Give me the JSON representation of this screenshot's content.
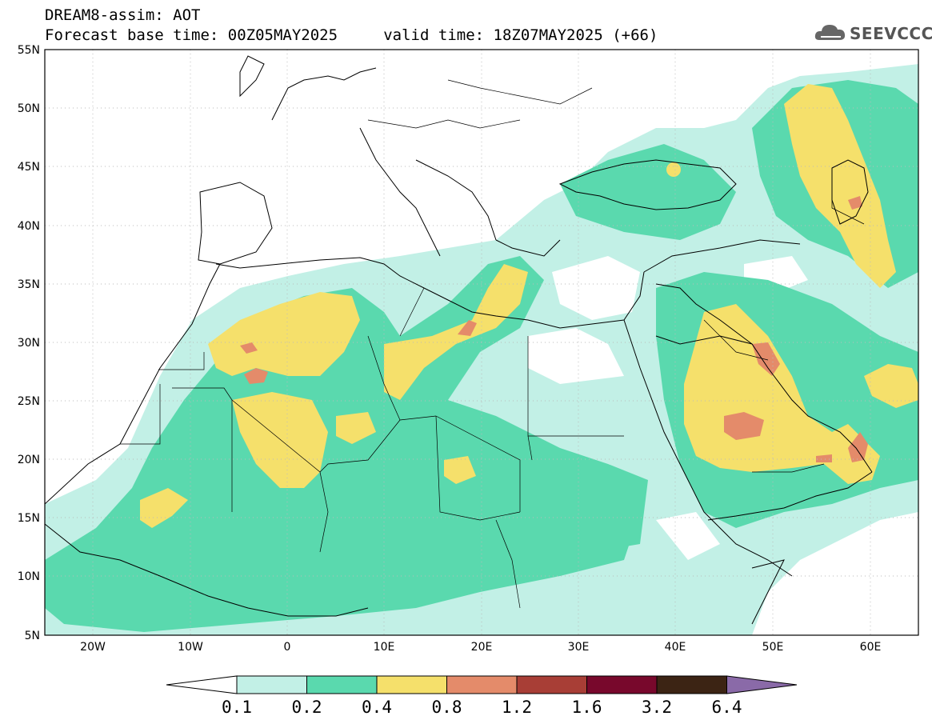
{
  "header": {
    "title": "DREAM8-assim: AOT",
    "subtitle": "Forecast base time: 00Z05MAY2025     valid time: 18Z07MAY2025 (+66)"
  },
  "logo": {
    "text": "SEEVCCC",
    "icon": "cloud-icon"
  },
  "map": {
    "lon_range": [
      -25,
      65
    ],
    "lat_range": [
      5,
      55
    ],
    "grid": true,
    "lat_ticks": [
      "55N",
      "50N",
      "45N",
      "40N",
      "35N",
      "30N",
      "25N",
      "20N",
      "15N",
      "10N",
      "5N"
    ],
    "lon_ticks": [
      "20W",
      "10W",
      "0",
      "10E",
      "20E",
      "30E",
      "40E",
      "50E",
      "60E"
    ]
  },
  "colorbar": {
    "levels": [
      "0.1",
      "0.2",
      "0.4",
      "0.8",
      "1.2",
      "1.6",
      "3.2",
      "6.4"
    ],
    "colors": [
      "#ffffff",
      "#c2f0e6",
      "#5ad9ae",
      "#f5e06b",
      "#e48b6a",
      "#a83e36",
      "#78082c",
      "#3c2414",
      "#8a6aa8"
    ]
  }
}
